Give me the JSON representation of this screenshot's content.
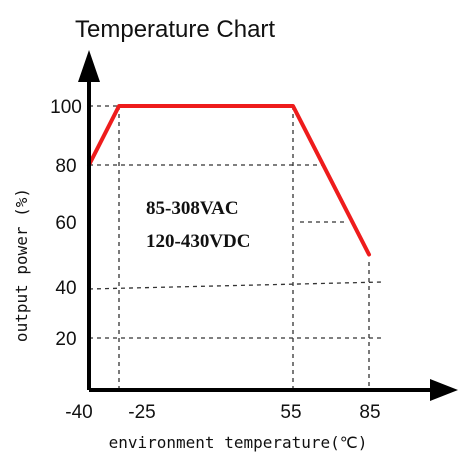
{
  "title": "Temperature Chart",
  "chart_data": {
    "type": "line",
    "title": "Temperature Chart",
    "xlabel": "environment temperature(℃)",
    "ylabel": "output power (%)",
    "xticks": [
      "-40",
      "-25",
      "55",
      "85"
    ],
    "yticks": [
      "20",
      "40",
      "60",
      "80",
      "100"
    ],
    "series": [
      {
        "x": [
          -40,
          -25,
          55,
          85
        ],
        "y": [
          80,
          100,
          100,
          50
        ]
      }
    ],
    "annotations": [
      "85-308VAC",
      "120-430VDC"
    ],
    "grid": "dashed",
    "colors": {
      "line": "#ee1c1c",
      "axis": "#000000",
      "grid": "#333333"
    }
  }
}
